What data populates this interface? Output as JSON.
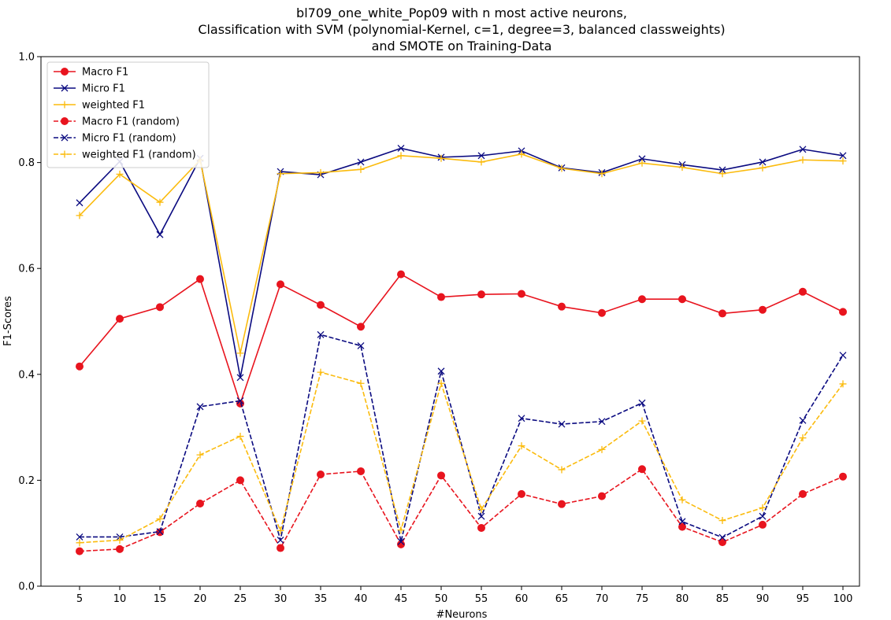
{
  "chart_data": {
    "type": "line",
    "title": [
      "bl709_one_white_Pop09 with n most active neurons,",
      "Classification with SVM (polynomial-Kernel, c=1, degree=3, balanced classweights)",
      "and SMOTE on Training-Data"
    ],
    "xlabel": "#Neurons",
    "ylabel": "F1-Scores",
    "ylim": [
      0,
      1
    ],
    "yticks": [
      "0.0",
      "0.2",
      "0.4",
      "0.6",
      "0.8",
      "1.0"
    ],
    "x": [
      5,
      10,
      15,
      20,
      25,
      30,
      35,
      40,
      45,
      50,
      55,
      60,
      65,
      70,
      75,
      80,
      85,
      90,
      95,
      100
    ],
    "legend_position": "upper-left",
    "grid": false,
    "series": [
      {
        "name": "Macro F1",
        "color": "#e8141e",
        "dash": "solid",
        "marker": "circle",
        "values": [
          0.415,
          0.505,
          0.527,
          0.58,
          0.345,
          0.57,
          0.531,
          0.49,
          0.589,
          0.546,
          0.551,
          0.552,
          0.528,
          0.516,
          0.542,
          0.542,
          0.515,
          0.522,
          0.556,
          0.518
        ]
      },
      {
        "name": "Micro F1",
        "color": "#0a0a80",
        "dash": "solid",
        "marker": "x",
        "values": [
          0.724,
          0.802,
          0.664,
          0.808,
          0.394,
          0.783,
          0.777,
          0.801,
          0.827,
          0.81,
          0.813,
          0.822,
          0.79,
          0.781,
          0.807,
          0.796,
          0.786,
          0.801,
          0.825,
          0.813
        ]
      },
      {
        "name": "weighted F1",
        "color": "#fbbb0d",
        "dash": "solid",
        "marker": "plus",
        "values": [
          0.7,
          0.778,
          0.725,
          0.805,
          0.44,
          0.779,
          0.781,
          0.787,
          0.813,
          0.808,
          0.801,
          0.816,
          0.789,
          0.779,
          0.799,
          0.791,
          0.779,
          0.79,
          0.805,
          0.803
        ]
      },
      {
        "name": "Macro F1 (random)",
        "color": "#e8141e",
        "dash": "dashed",
        "marker": "circle",
        "values": [
          0.066,
          0.07,
          0.102,
          0.156,
          0.2,
          0.072,
          0.211,
          0.217,
          0.079,
          0.209,
          0.11,
          0.174,
          0.155,
          0.17,
          0.221,
          0.112,
          0.083,
          0.116,
          0.174,
          0.207
        ]
      },
      {
        "name": "Micro F1 (random)",
        "color": "#0a0a80",
        "dash": "dashed",
        "marker": "x",
        "values": [
          0.093,
          0.093,
          0.103,
          0.339,
          0.35,
          0.087,
          0.475,
          0.454,
          0.084,
          0.406,
          0.132,
          0.317,
          0.306,
          0.311,
          0.346,
          0.122,
          0.092,
          0.132,
          0.313,
          0.436
        ]
      },
      {
        "name": "weighted F1 (random)",
        "color": "#fbbb0d",
        "dash": "dashed",
        "marker": "plus",
        "values": [
          0.082,
          0.087,
          0.127,
          0.248,
          0.283,
          0.105,
          0.404,
          0.383,
          0.106,
          0.383,
          0.145,
          0.265,
          0.22,
          0.258,
          0.312,
          0.163,
          0.124,
          0.148,
          0.28,
          0.382
        ]
      }
    ]
  }
}
